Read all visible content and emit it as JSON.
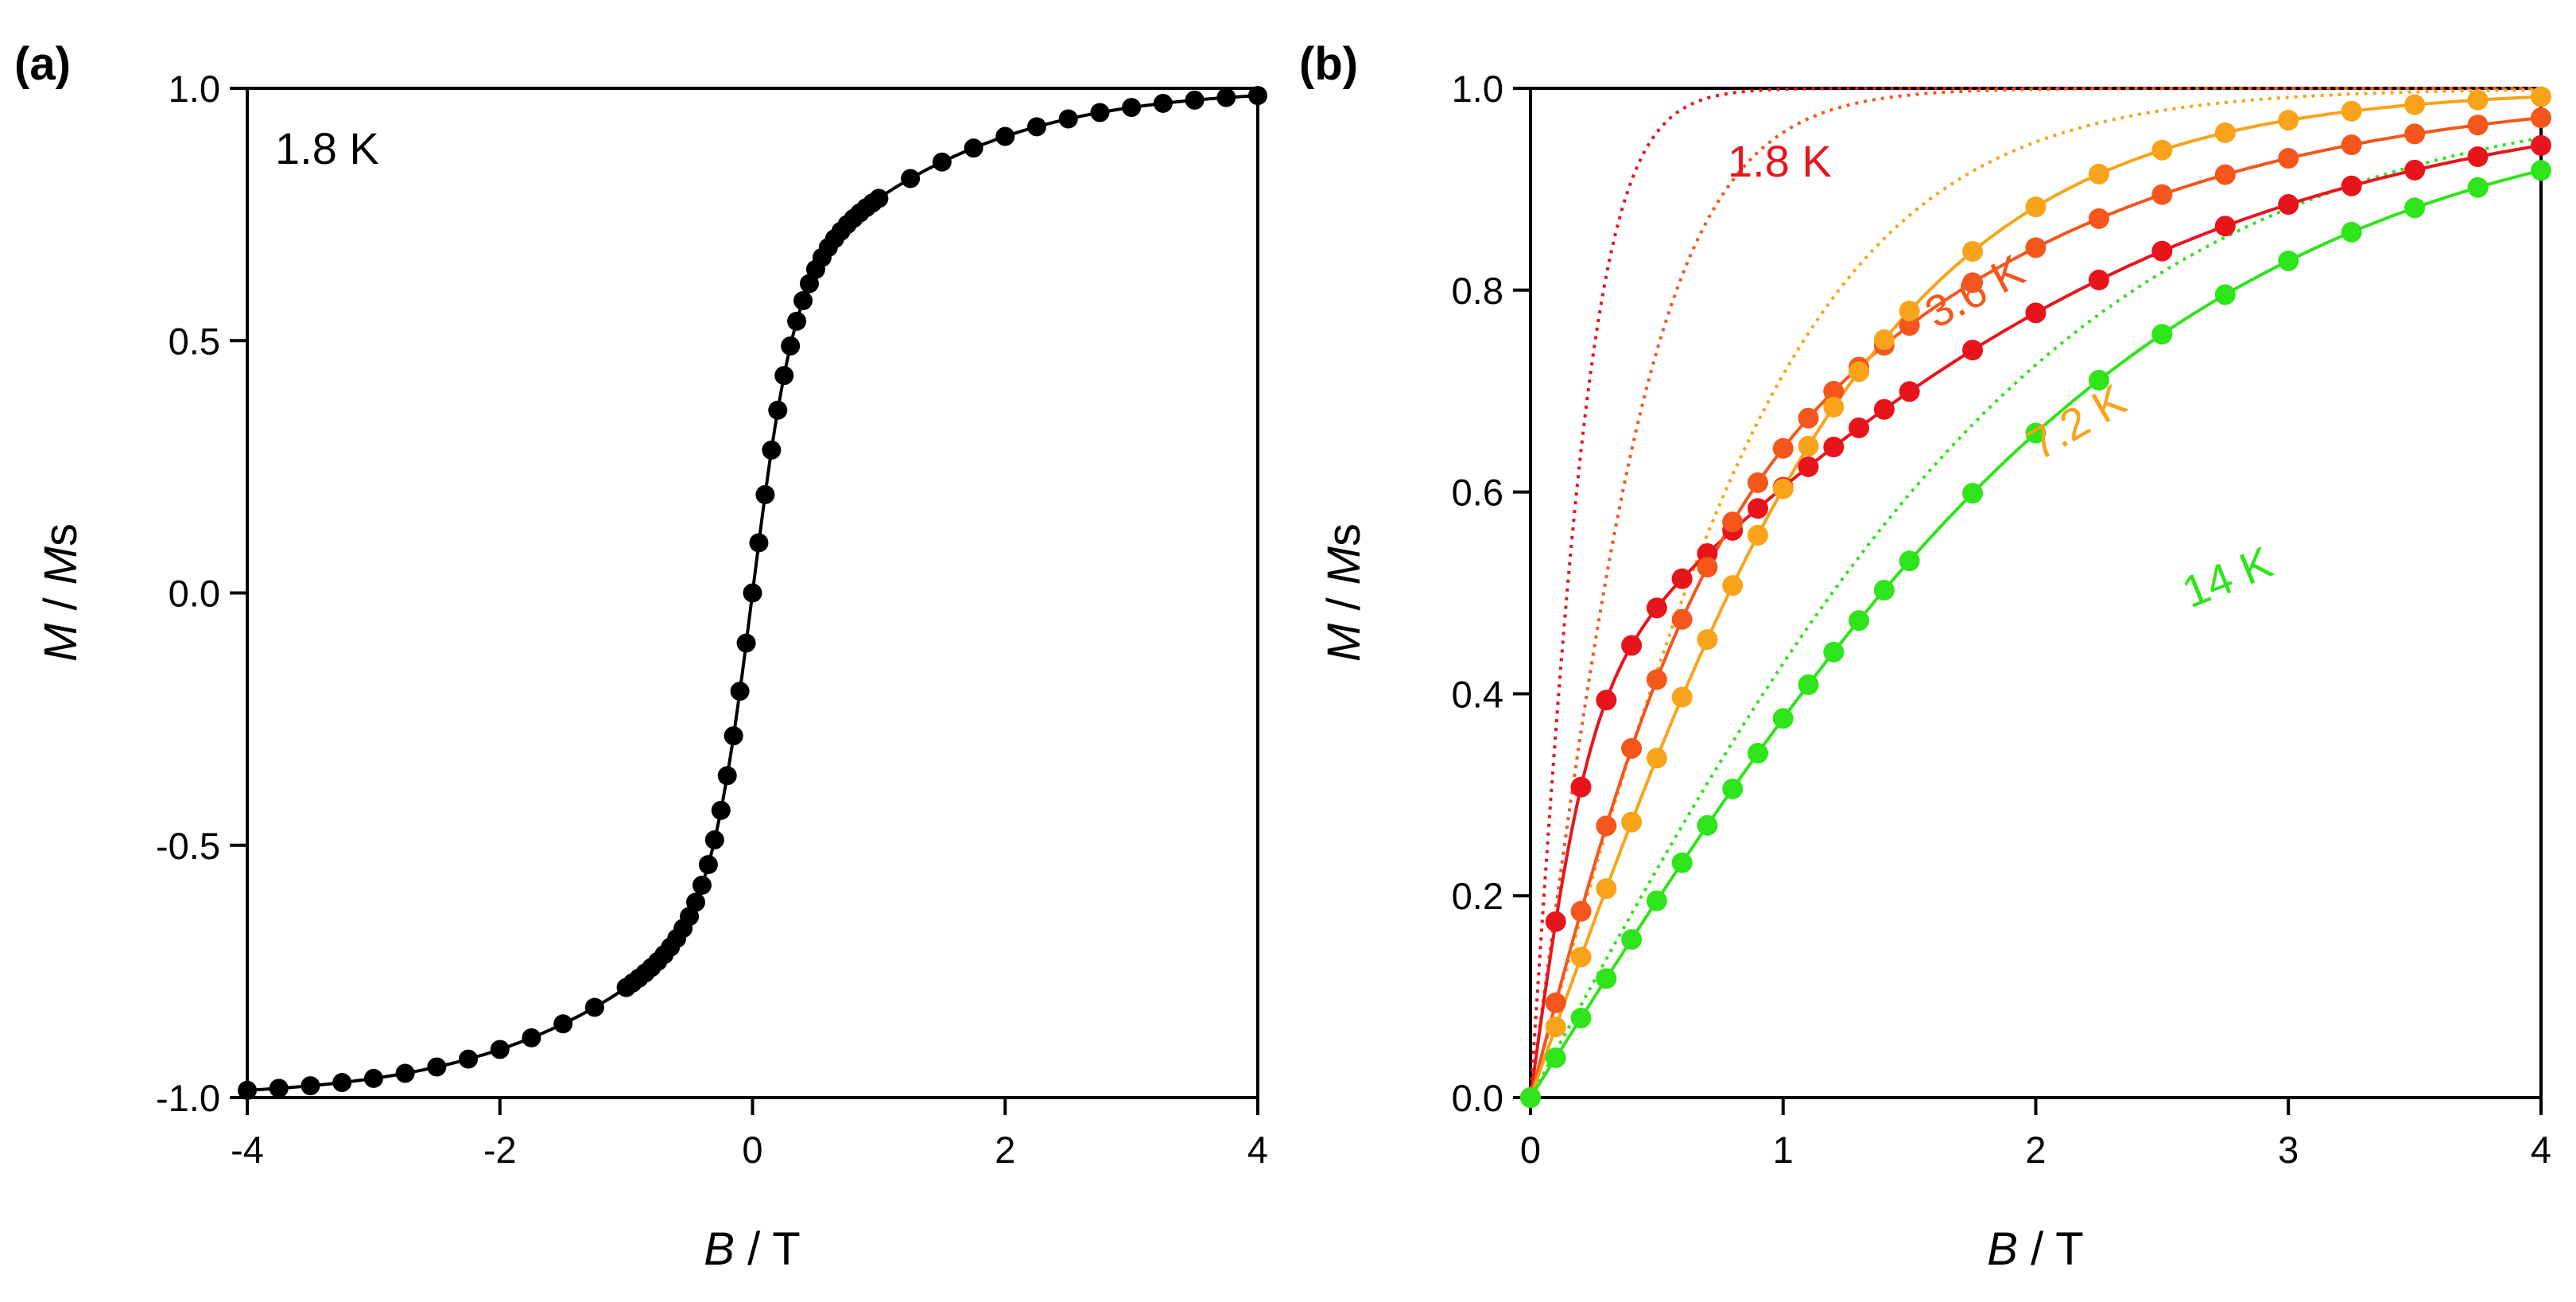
{
  "chart_data": [
    {
      "type": "scatter",
      "panel_label": "(a)",
      "annotation": "1.8 K",
      "title": "",
      "xlabel": {
        "italic": "B",
        "rest": " / T"
      },
      "ylabel": {
        "italic1": "M",
        "mid": " / ",
        "italic2": "M",
        "rest": "s"
      },
      "xlim": [
        -4,
        4
      ],
      "ylim": [
        -1.0,
        1.0
      ],
      "xticks": [
        "-4",
        "-2",
        "0",
        "2",
        "4"
      ],
      "yticks": [
        "-1.0",
        "-0.5",
        "0.0",
        "0.5",
        "1.0"
      ],
      "color": "#000000",
      "model": {
        "a": 0.6,
        "b": 3.0,
        "c": 0.5
      },
      "points_x": [
        -4,
        -3.75,
        -3.5,
        -3.25,
        -3,
        -2.75,
        -2.5,
        -2.25,
        -2,
        -1.75,
        -1.5,
        -1.25,
        -1,
        -0.95,
        -0.9,
        -0.85,
        -0.8,
        -0.75,
        -0.7,
        -0.65,
        -0.6,
        -0.55,
        -0.5,
        -0.45,
        -0.4,
        -0.35,
        -0.3,
        -0.25,
        -0.2,
        -0.15,
        -0.1,
        -0.05,
        0,
        0.05,
        0.1,
        0.15,
        0.2,
        0.25,
        0.3,
        0.35,
        0.4,
        0.45,
        0.5,
        0.55,
        0.6,
        0.65,
        0.7,
        0.75,
        0.8,
        0.85,
        0.9,
        0.95,
        1,
        1.25,
        1.5,
        1.75,
        2,
        2.25,
        2.5,
        2.75,
        3,
        3.25,
        3.5,
        3.75,
        4
      ]
    },
    {
      "type": "scatter",
      "panel_label": "(b)",
      "title": "",
      "xlabel": {
        "italic": "B",
        "rest": " / T"
      },
      "ylabel": {
        "italic1": "M",
        "mid": " / ",
        "italic2": "M",
        "rest": "s"
      },
      "xlim": [
        0,
        4
      ],
      "ylim": [
        0,
        1.0
      ],
      "xticks": [
        "0",
        "1",
        "2",
        "3",
        "4"
      ],
      "yticks": [
        "0.0",
        "0.2",
        "0.4",
        "0.6",
        "0.8",
        "1.0"
      ],
      "series": [
        {
          "name": "1.8 K",
          "color": "#e8141c",
          "label_rotation": 0,
          "model": {
            "a": 0.62,
            "b": 0.38,
            "c": 4.2
          },
          "dotted_slope": 3.8,
          "points_x": [
            0,
            0.1,
            0.2,
            0.3,
            0.4,
            0.5,
            0.6,
            0.7,
            0.8,
            0.9,
            1,
            1.1,
            1.2,
            1.3,
            1.4,
            1.5,
            1.75,
            2,
            2.25,
            2.5,
            2.75,
            3,
            3.25,
            3.5,
            3.75,
            4
          ]
        },
        {
          "name": "3.6 K",
          "color": "#f4561c",
          "label_rotation": -28,
          "model": {
            "a": 0.55,
            "b": 0.45,
            "c": 1.55
          },
          "dotted_slope": 1.9,
          "points_x": [
            0,
            0.1,
            0.2,
            0.3,
            0.4,
            0.5,
            0.6,
            0.7,
            0.8,
            0.9,
            1,
            1.1,
            1.2,
            1.3,
            1.4,
            1.5,
            1.75,
            2,
            2.25,
            2.5,
            2.75,
            3,
            3.25,
            3.5,
            3.75,
            4
          ]
        },
        {
          "name": "7.2 K",
          "color": "#f8a31a",
          "label_rotation": -30,
          "model": {
            "a": 0.38,
            "b": 0.62,
            "c": 0.75
          },
          "dotted_slope": 0.9,
          "points_x": [
            0,
            0.1,
            0.2,
            0.3,
            0.4,
            0.5,
            0.6,
            0.7,
            0.8,
            0.9,
            1,
            1.1,
            1.2,
            1.3,
            1.4,
            1.5,
            1.75,
            2,
            2.25,
            2.5,
            2.75,
            3,
            3.25,
            3.5,
            3.75,
            4
          ]
        },
        {
          "name": "14 K",
          "color": "#2ee41a",
          "label_rotation": -22,
          "model": {
            "a": 0.0,
            "b": 1.0,
            "c": 0.395
          },
          "dotted_slope": 0.46,
          "points_x": [
            0,
            0.1,
            0.2,
            0.3,
            0.4,
            0.5,
            0.6,
            0.7,
            0.8,
            0.9,
            1,
            1.1,
            1.2,
            1.3,
            1.4,
            1.5,
            1.75,
            2,
            2.25,
            2.5,
            2.75,
            3,
            3.25,
            3.5,
            3.75,
            4
          ]
        }
      ]
    }
  ]
}
